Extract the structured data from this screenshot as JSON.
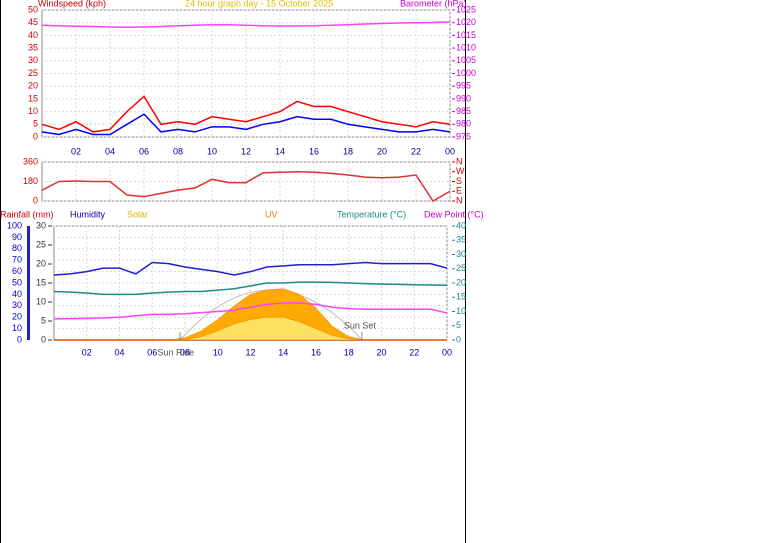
{
  "chart_data": [
    {
      "type": "line",
      "title": "24 hour graph day - 15 October 2025",
      "y_label": "Windspeed (kph)",
      "y2_label": "Barometer (hPa)",
      "x": [
        0,
        1,
        2,
        3,
        4,
        5,
        6,
        7,
        8,
        9,
        10,
        11,
        12,
        13,
        14,
        15,
        16,
        17,
        18,
        19,
        20,
        21,
        22,
        23,
        24
      ],
      "xlim": [
        0,
        24
      ],
      "xticks": [
        {
          "value": 2,
          "label": "02"
        },
        {
          "value": 4,
          "label": "04"
        },
        {
          "value": 6,
          "label": "06"
        },
        {
          "value": 8,
          "label": "08"
        },
        10,
        12,
        14,
        16,
        18,
        20,
        22,
        {
          "value": 24,
          "label": "00"
        }
      ],
      "ylim": [
        0,
        50
      ],
      "yticks": [
        0,
        5,
        10,
        15,
        20,
        25,
        30,
        35,
        40,
        45,
        50
      ],
      "y2lim": [
        975,
        1025
      ],
      "y2ticks": [
        975,
        980,
        985,
        990,
        995,
        1000,
        1005,
        1010,
        1015,
        1020,
        1025
      ],
      "grid": true,
      "series": [
        {
          "color": "#ff0000",
          "axis": "y",
          "values": [
            5,
            3,
            6,
            2,
            3,
            10,
            16,
            5,
            6,
            5,
            8,
            7,
            6,
            8,
            10,
            14,
            12,
            12,
            10,
            8,
            6,
            5,
            4,
            6,
            5
          ]
        },
        {
          "color": "#0000ff",
          "axis": "y",
          "values": [
            2,
            1,
            3,
            1,
            1,
            5,
            9,
            2,
            3,
            2,
            4,
            4,
            3,
            5,
            6,
            8,
            7,
            7,
            5,
            4,
            3,
            2,
            2,
            3,
            2
          ]
        },
        {
          "color": "#ff40ff",
          "axis": "y2",
          "values": [
            1019,
            1018.8,
            1018.6,
            1018.5,
            1018.3,
            1018.2,
            1018.3,
            1018.5,
            1018.8,
            1019,
            1019.2,
            1019.2,
            1019,
            1018.8,
            1018.7,
            1018.7,
            1018.8,
            1019,
            1019.2,
            1019.5,
            1019.7,
            1019.9,
            1020,
            1020.1,
            1020.3
          ]
        }
      ]
    },
    {
      "type": "line",
      "x": [
        0,
        1,
        2,
        3,
        4,
        5,
        6,
        7,
        8,
        9,
        10,
        11,
        12,
        13,
        14,
        15,
        16,
        17,
        18,
        19,
        20,
        21,
        22,
        23,
        24
      ],
      "xlim": [
        0,
        24
      ],
      "xticks": [
        2,
        4,
        6,
        8,
        10,
        12,
        14,
        16,
        18,
        20,
        22,
        24
      ],
      "ylim": [
        0,
        360
      ],
      "yticks": [
        0,
        180,
        360
      ],
      "y2lim": [
        0,
        360
      ],
      "y2ticks": [
        {
          "value": 360,
          "label": "N"
        },
        {
          "value": 270,
          "label": "W"
        },
        {
          "value": 180,
          "label": "S"
        },
        {
          "value": 90,
          "label": "E"
        },
        {
          "value": 0,
          "label": "N"
        }
      ],
      "grid": true,
      "series": [
        {
          "color": "#e03030",
          "axis": "y",
          "values": [
            100,
            180,
            185,
            180,
            180,
            55,
            40,
            70,
            100,
            120,
            200,
            170,
            170,
            260,
            265,
            270,
            265,
            255,
            240,
            220,
            215,
            220,
            240,
            0,
            90
          ]
        }
      ]
    },
    {
      "type": "line",
      "x": [
        0,
        1,
        2,
        3,
        4,
        5,
        6,
        7,
        8,
        9,
        10,
        11,
        12,
        13,
        14,
        15,
        16,
        17,
        18,
        19,
        20,
        21,
        22,
        23,
        24
      ],
      "xlim": [
        0,
        24
      ],
      "xticks": [
        {
          "value": 2,
          "label": "02"
        },
        {
          "value": 4,
          "label": "04"
        },
        {
          "value": 6,
          "label": "06"
        },
        {
          "value": 8,
          "label": "08"
        },
        10,
        12,
        14,
        16,
        18,
        20,
        22,
        {
          "value": 24,
          "label": "00"
        }
      ],
      "ylim": [
        0,
        100
      ],
      "yticks": [
        0,
        10,
        20,
        30,
        40,
        50,
        60,
        70,
        80,
        90,
        100
      ],
      "y3lim": [
        0,
        30
      ],
      "y3ticks": [
        0,
        5,
        10,
        15,
        20,
        25,
        30
      ],
      "y2lim": [
        0,
        40
      ],
      "y2ticks": [
        0,
        5,
        10,
        15,
        20,
        25,
        30,
        35,
        40
      ],
      "grid": true,
      "series": [
        {
          "name": "Rainfall (mm)",
          "color": "#cc0000",
          "axis": "y3",
          "values": [
            0,
            0,
            0,
            0,
            0,
            0,
            0,
            0,
            0,
            0,
            0,
            0,
            0,
            0,
            0,
            0,
            0,
            0,
            0,
            0,
            0,
            0,
            0,
            0,
            0
          ]
        },
        {
          "name": "Humidity",
          "color": "#2020cc",
          "axis": "y",
          "values": [
            57,
            58,
            60,
            63,
            63,
            58,
            68,
            67,
            64,
            62,
            60,
            57,
            60,
            64,
            65,
            66,
            66,
            66,
            67,
            68,
            67,
            67,
            67,
            67,
            63
          ]
        },
        {
          "name": "Solar",
          "color": "#ffaa00",
          "axis": "y",
          "type": "area",
          "values": [
            0,
            0,
            0,
            0,
            0,
            0,
            0,
            0,
            2,
            8,
            18,
            30,
            40,
            44,
            45,
            40,
            28,
            12,
            3,
            0,
            0,
            0,
            0,
            0,
            0
          ]
        },
        {
          "name": "UV",
          "color": "#ffe060",
          "axis": "y",
          "type": "area",
          "values": [
            0,
            0,
            0,
            0,
            0,
            0,
            0,
            0,
            0,
            3,
            8,
            14,
            18,
            20,
            20,
            16,
            10,
            4,
            1,
            0,
            0,
            0,
            0,
            0,
            0
          ]
        },
        {
          "name": "Temperature (°C)",
          "color": "#208888",
          "axis": "y2",
          "values": [
            17,
            16.8,
            16.5,
            16,
            16,
            16,
            16.5,
            16.8,
            17,
            17,
            17.5,
            18,
            19,
            20,
            20,
            20.3,
            20.3,
            20.2,
            20,
            19.8,
            19.6,
            19.5,
            19.4,
            19.3,
            19.2
          ]
        },
        {
          "name": "Dew Point (°C)",
          "color": "#ff40ff",
          "axis": "y2",
          "values": [
            7.4,
            7.5,
            7.6,
            7.7,
            8,
            8.5,
            9,
            9,
            9.2,
            9.6,
            10,
            10.5,
            11.5,
            12.5,
            13,
            13,
            12.5,
            11.5,
            11,
            10.8,
            10.8,
            10.8,
            10.8,
            10.8,
            9.5
          ]
        }
      ],
      "annotations": [
        {
          "text": "Sun Rise",
          "x": 7.7
        },
        {
          "text": "Sun Set",
          "x": 18.8
        }
      ]
    }
  ]
}
